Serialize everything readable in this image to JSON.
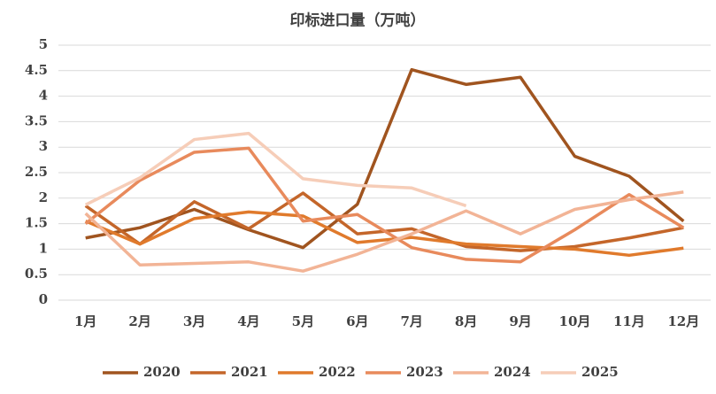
{
  "chart_data": {
    "type": "line",
    "title": "印标进口量（万吨）",
    "categories": [
      "1月",
      "2月",
      "3月",
      "4月",
      "5月",
      "6月",
      "7月",
      "8月",
      "9月",
      "10月",
      "11月",
      "12月"
    ],
    "series": [
      {
        "name": "2020",
        "color": "#a0541f",
        "values": [
          1.22,
          1.42,
          1.78,
          1.38,
          1.03,
          1.88,
          4.52,
          4.23,
          4.37,
          2.82,
          2.43,
          1.55
        ]
      },
      {
        "name": "2021",
        "color": "#c4662a",
        "values": [
          1.85,
          1.1,
          1.93,
          1.4,
          2.1,
          1.3,
          1.4,
          1.05,
          0.97,
          1.05,
          1.22,
          1.42
        ]
      },
      {
        "name": "2022",
        "color": "#e07a2c",
        "values": [
          1.55,
          1.1,
          1.6,
          1.73,
          1.65,
          1.13,
          1.23,
          1.1,
          1.05,
          1.0,
          0.88,
          1.02
        ]
      },
      {
        "name": "2023",
        "color": "#e88a5c",
        "values": [
          1.5,
          2.35,
          2.9,
          2.98,
          1.55,
          1.68,
          1.03,
          0.8,
          0.75,
          1.38,
          2.07,
          1.42
        ]
      },
      {
        "name": "2024",
        "color": "#f2b496",
        "values": [
          1.7,
          0.69,
          0.72,
          0.75,
          0.57,
          0.9,
          1.3,
          1.75,
          1.3,
          1.78,
          1.97,
          2.12
        ]
      },
      {
        "name": "2025",
        "color": "#f6cdb8",
        "values": [
          1.87,
          2.4,
          3.15,
          3.27,
          2.38,
          2.25,
          2.2,
          1.85,
          null,
          null,
          null,
          null
        ]
      }
    ],
    "ylim": [
      0,
      5
    ],
    "yticks": [
      0,
      0.5,
      1,
      1.5,
      2,
      2.5,
      3,
      3.5,
      4,
      4.5,
      5
    ],
    "grid": true,
    "legend": "bottom"
  }
}
